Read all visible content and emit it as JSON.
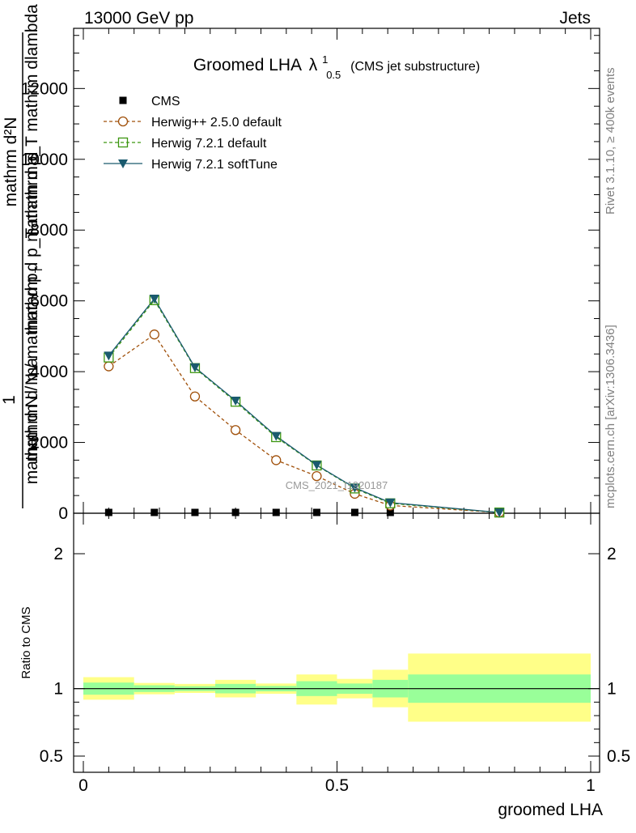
{
  "header": {
    "left": "13000 GeV pp",
    "right": "Jets"
  },
  "title": {
    "main": "Groomed LHA",
    "lambda": "λ",
    "sup": "1",
    "sub": "0.5",
    "suffix": "(CMS jet substructure)"
  },
  "side_texts": {
    "rivet": "Rivet 3.1.10, ≥ 400k events",
    "mcplots": "mcplots.cern.ch [arXiv:1306.3436]",
    "watermark": "CMS_2021_I1920187"
  },
  "ylabel_main": {
    "numerator": "mathrm d²N",
    "fraction_one": "1",
    "line1": "mathrm d p_T mathrm dlambda",
    "line1_sub": "T",
    "line2": "mathrm d N / mathrm d p",
    "line2_sub": "T",
    "line3": "mathrm d p_T mathrm d",
    "line4": "mathrm d N / ma"
  },
  "ylabel_ratio": "Ratio to CMS",
  "xlabel": "groomed LHA",
  "colors": {
    "cms": "#000000",
    "herwigpp": "#a0500a",
    "herwig721": "#3c9610",
    "softtune": "#1a5a6e",
    "band_inner": "#99ff99",
    "band_outer": "#ffff88"
  },
  "chart_data": {
    "type": "line",
    "xlim": [
      0,
      1
    ],
    "ylim": [
      0,
      13700
    ],
    "x_ticks": [
      0,
      0.5,
      1
    ],
    "x_tick_labels": [
      "0",
      "0.5",
      "1"
    ],
    "y_ticks": [
      0,
      2000,
      4000,
      6000,
      8000,
      10000,
      12000
    ],
    "y_tick_labels": [
      "0",
      "2000",
      "4000",
      "6000",
      "8000",
      "10000",
      "12000"
    ],
    "x": [
      0.05,
      0.14,
      0.22,
      0.3,
      0.38,
      0.46,
      0.535,
      0.605,
      0.82
    ],
    "series": [
      {
        "name": "CMS",
        "values": [
          5,
          5,
          5,
          5,
          5,
          5,
          5,
          5,
          5
        ],
        "marker": "square-filled",
        "style": "points"
      },
      {
        "name": "Herwig++ 2.5.0 default",
        "values": [
          4150,
          5050,
          3300,
          2350,
          1500,
          1050,
          550,
          220,
          20
        ],
        "marker": "circle-open",
        "style": "dashed"
      },
      {
        "name": "Herwig 7.2.1 default",
        "values": [
          4400,
          6020,
          4100,
          3150,
          2150,
          1350,
          700,
          280,
          20
        ],
        "marker": "square-open",
        "style": "dashed"
      },
      {
        "name": "Herwig 7.2.1 softTune",
        "values": [
          4450,
          6060,
          4120,
          3180,
          2180,
          1360,
          720,
          300,
          20
        ],
        "marker": "triangle-down-filled",
        "style": "solid"
      }
    ],
    "ratio": {
      "ylabel": "Ratio to CMS",
      "ylim": [
        0.38,
        2.3
      ],
      "y_ticks": [
        0.5,
        1,
        2
      ],
      "y_tick_labels": [
        "0.5",
        "1",
        "2"
      ],
      "bins": [
        {
          "x0": 0.0,
          "x1": 0.1,
          "inner": [
            0.955,
            1.045
          ],
          "outer": [
            0.918,
            1.085
          ]
        },
        {
          "x0": 0.1,
          "x1": 0.18,
          "inner": [
            0.975,
            1.025
          ],
          "outer": [
            0.958,
            1.042
          ]
        },
        {
          "x0": 0.18,
          "x1": 0.26,
          "inner": [
            0.982,
            1.018
          ],
          "outer": [
            0.968,
            1.035
          ]
        },
        {
          "x0": 0.26,
          "x1": 0.34,
          "inner": [
            0.965,
            1.035
          ],
          "outer": [
            0.935,
            1.065
          ]
        },
        {
          "x0": 0.34,
          "x1": 0.42,
          "inner": [
            0.98,
            1.02
          ],
          "outer": [
            0.962,
            1.038
          ]
        },
        {
          "x0": 0.42,
          "x1": 0.5,
          "inner": [
            0.945,
            1.055
          ],
          "outer": [
            0.882,
            1.105
          ]
        },
        {
          "x0": 0.5,
          "x1": 0.57,
          "inner": [
            0.962,
            1.038
          ],
          "outer": [
            0.928,
            1.072
          ]
        },
        {
          "x0": 0.57,
          "x1": 0.64,
          "inner": [
            0.935,
            1.065
          ],
          "outer": [
            0.862,
            1.14
          ]
        },
        {
          "x0": 0.64,
          "x1": 1.0,
          "inner": [
            0.895,
            1.105
          ],
          "outer": [
            0.755,
            1.26
          ]
        }
      ]
    }
  }
}
